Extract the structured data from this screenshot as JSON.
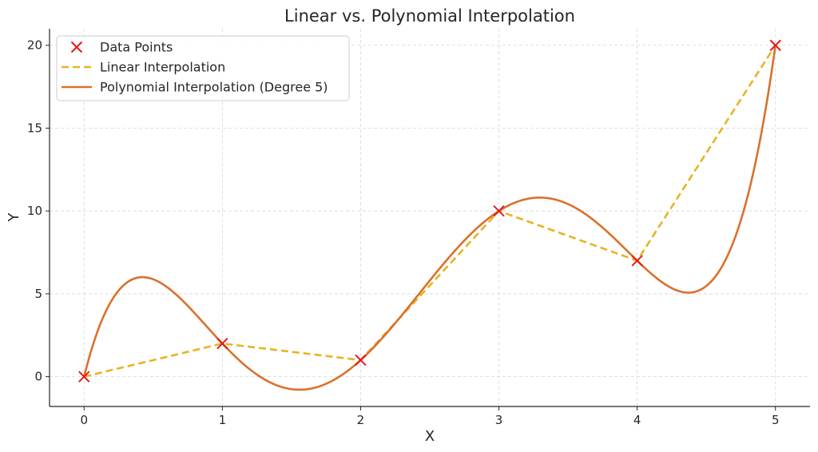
{
  "chart_data": {
    "type": "line",
    "title": "Linear vs. Polynomial Interpolation",
    "xlabel": "X",
    "ylabel": "Y",
    "xlim": [
      -0.25,
      5.25
    ],
    "ylim": [
      -1.8,
      21.0
    ],
    "xticks": [
      0,
      1,
      2,
      3,
      4,
      5
    ],
    "yticks": [
      0,
      5,
      10,
      15,
      20
    ],
    "grid": true,
    "legend_position": "top-left",
    "series": [
      {
        "name": "Data Points",
        "kind": "scatter",
        "marker": "x",
        "color": "#e31a1c",
        "x": [
          0,
          1,
          2,
          3,
          4,
          5
        ],
        "y": [
          0,
          2,
          1,
          10,
          7,
          20
        ]
      },
      {
        "name": "Linear Interpolation",
        "kind": "line",
        "style": "dashed",
        "color": "#e6b422",
        "x": [
          0,
          1,
          2,
          3,
          4,
          5
        ],
        "y": [
          0,
          2,
          1,
          10,
          7,
          20
        ]
      },
      {
        "name": "Polynomial Interpolation (Degree 5)",
        "kind": "line",
        "style": "solid",
        "color": "#d9712b",
        "x": [
          0,
          1,
          2,
          3,
          4,
          5
        ],
        "y": [
          0,
          2,
          1,
          10,
          7,
          20
        ]
      }
    ]
  }
}
